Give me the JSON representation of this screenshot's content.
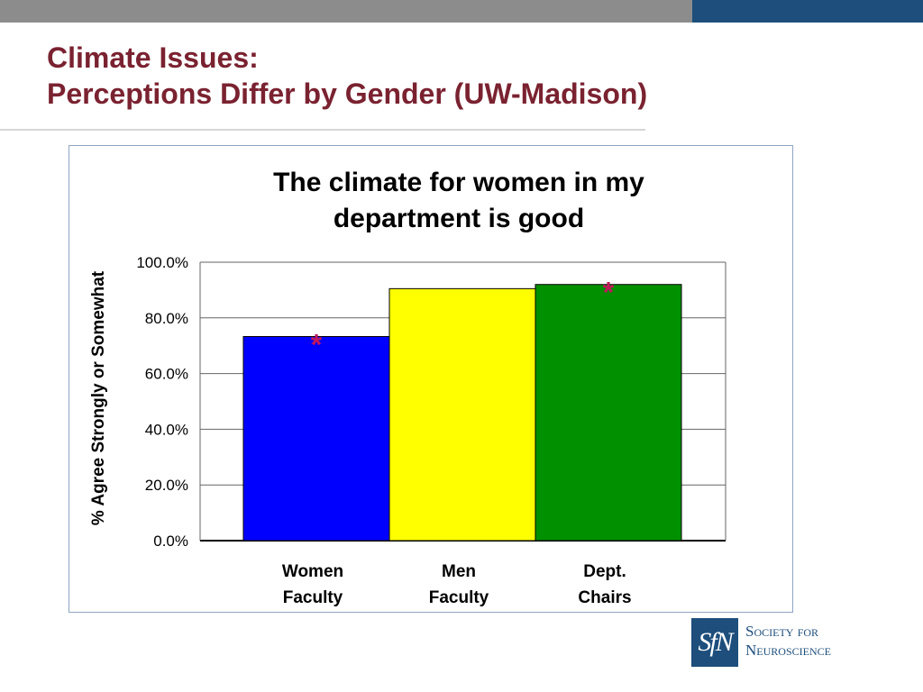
{
  "slide": {
    "title_line1": "Climate Issues:",
    "title_line2": "Perceptions Differ by Gender (UW-Madison)"
  },
  "colors": {
    "title": "#7a2230",
    "topbar_gray": "#8c8c8c",
    "topbar_blue": "#1d4e7c",
    "asterisk": "#c0185c"
  },
  "chart_data": {
    "type": "bar",
    "title_lines": [
      "The climate for women in my",
      "department is good"
    ],
    "ylabel": "% Agree Strongly or Somewhat",
    "xlabel": "",
    "categories": [
      [
        "Women",
        "Faculty"
      ],
      [
        "Men",
        "Faculty"
      ],
      [
        "Dept.",
        "Chairs"
      ]
    ],
    "values": [
      73.3,
      90.5,
      92.0
    ],
    "bar_colors": [
      "#0000ff",
      "#ffff00",
      "#009000"
    ],
    "annotations": [
      "*",
      "",
      "*"
    ],
    "ylim": [
      0,
      100
    ],
    "yticks": [
      0,
      20,
      40,
      60,
      80,
      100
    ],
    "ytick_labels": [
      "0.0%",
      "20.0%",
      "40.0%",
      "60.0%",
      "80.0%",
      "100.0%"
    ],
    "grid": true,
    "legend": "none"
  },
  "logo": {
    "mark": "SfN",
    "line1": "Society for",
    "line2": "Neuroscience"
  }
}
